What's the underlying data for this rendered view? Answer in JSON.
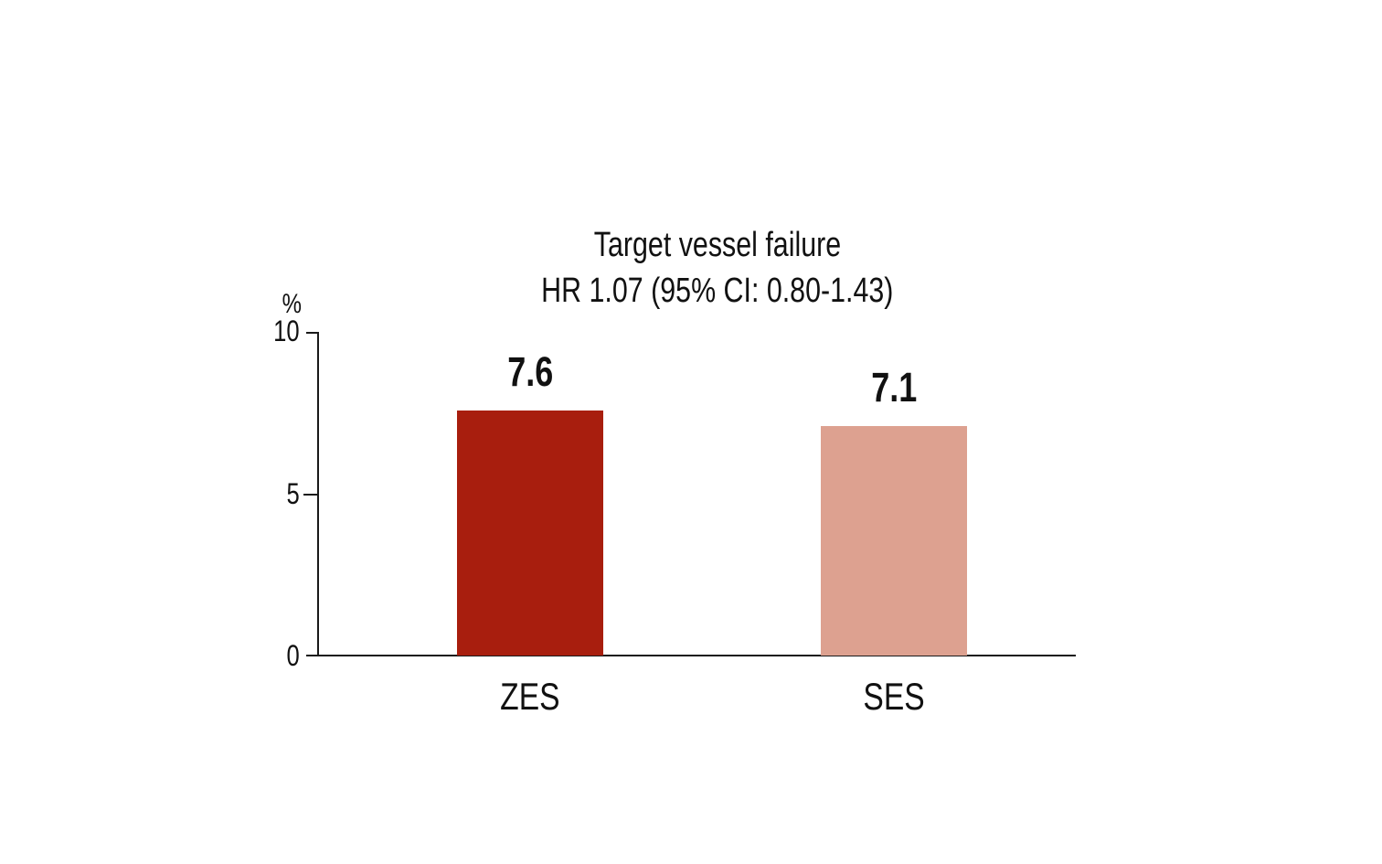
{
  "chart_data": {
    "type": "bar",
    "title": "Target vessel failure",
    "subtitle": "HR 1.07 (95% CI: 0.80-1.43)",
    "ylabel": "%",
    "ylim": [
      0,
      10
    ],
    "yticks": [
      "10",
      "5",
      "0"
    ],
    "categories": [
      "ZES",
      "SES"
    ],
    "values": [
      7.6,
      7.1
    ],
    "value_labels": [
      "7.6",
      "7.1"
    ],
    "series": [
      {
        "name": "ZES",
        "values": [
          7.6
        ]
      },
      {
        "name": "SES",
        "values": [
          7.1
        ]
      }
    ],
    "bar_colors": [
      "#a81e0e",
      "#dda190"
    ],
    "axis_color": "#1a1a1a",
    "text_color": "#111111",
    "background_color": "#ffffff",
    "grid": false,
    "legend_position": "none"
  }
}
